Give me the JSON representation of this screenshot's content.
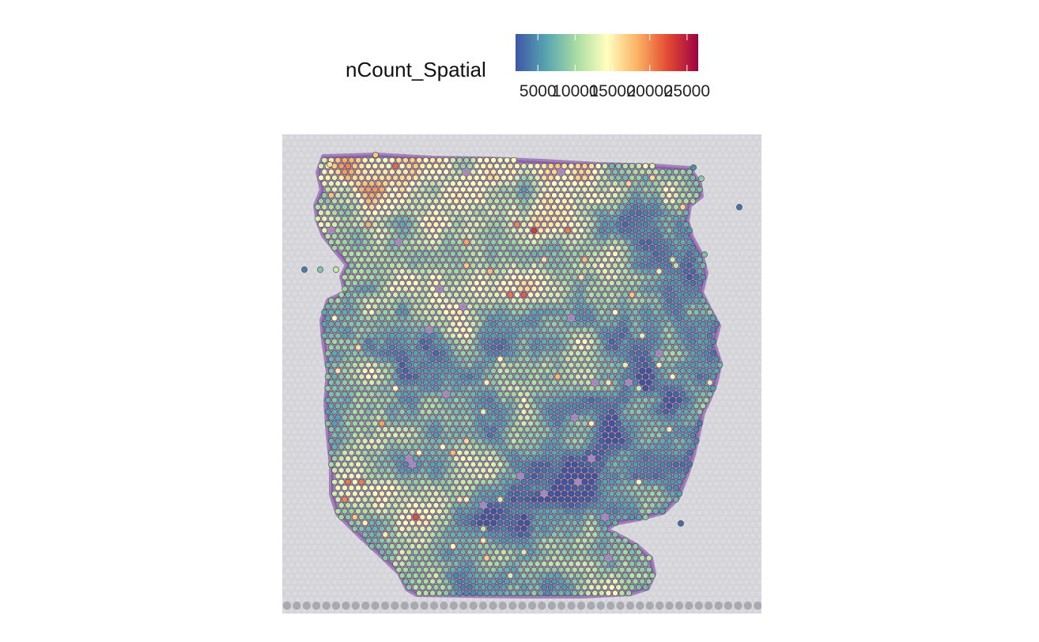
{
  "chart_data": {
    "type": "scatter",
    "title": "",
    "xlabel": "",
    "ylabel": "",
    "legend": {
      "title": "nCount_Spatial",
      "position": "top",
      "palette": "Spectral",
      "colors": [
        "#3e56a4",
        "#57a4b1",
        "#a8dca2",
        "#ffffbf",
        "#fbb264",
        "#e34a33",
        "#9e0142"
      ],
      "range": [
        2000,
        26500
      ],
      "ticks": [
        5000,
        10000,
        15000,
        20000,
        25000
      ],
      "tick_labels": [
        "5000",
        "10000",
        "15000",
        "20000",
        "25000"
      ]
    },
    "value_range": [
      2000,
      26500
    ],
    "grid": false,
    "background": "#d3d3d8",
    "tissue_color": "#7b4a9e",
    "spot_outline": "#333333",
    "hotspots": [
      {
        "region": "upper-left",
        "value": 21000
      },
      {
        "region": "lower-center",
        "value": 25500
      },
      {
        "region": "lower-left",
        "value": 21000
      },
      {
        "region": "center",
        "value": 20000
      }
    ]
  }
}
